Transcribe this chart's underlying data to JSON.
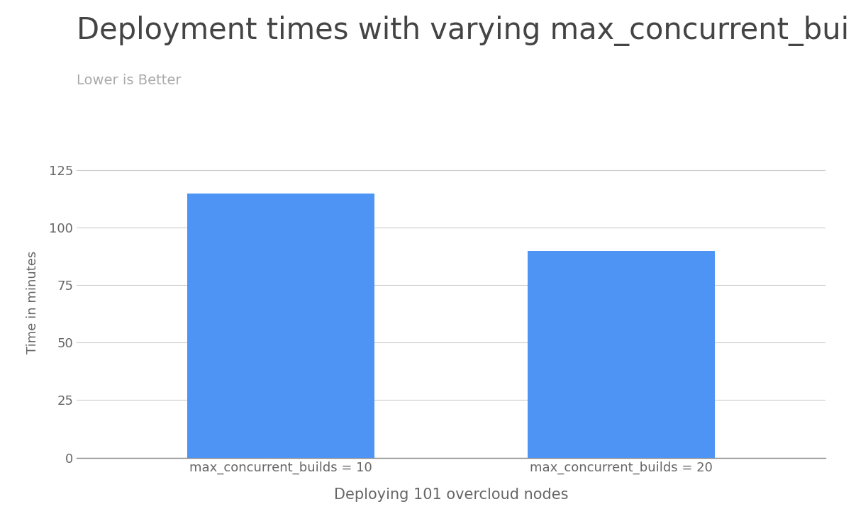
{
  "title": "Deployment times with varying max_concurrent_builds",
  "subtitle": "Lower is Better",
  "xlabel": "Deploying 101 overcloud nodes",
  "ylabel": "Time in minutes",
  "categories": [
    "max_concurrent_builds = 10",
    "max_concurrent_builds = 20"
  ],
  "values": [
    115,
    90
  ],
  "bar_color": "#4d94f5",
  "background_color": "#ffffff",
  "ylim": [
    0,
    135
  ],
  "yticks": [
    0,
    25,
    50,
    75,
    100,
    125
  ],
  "title_fontsize": 30,
  "subtitle_fontsize": 14,
  "xlabel_fontsize": 15,
  "ylabel_fontsize": 13,
  "tick_fontsize": 13,
  "xtick_fontsize": 13,
  "grid_color": "#cccccc",
  "title_color": "#444444",
  "subtitle_color": "#aaaaaa",
  "label_color": "#666666",
  "bar_width": 0.55
}
